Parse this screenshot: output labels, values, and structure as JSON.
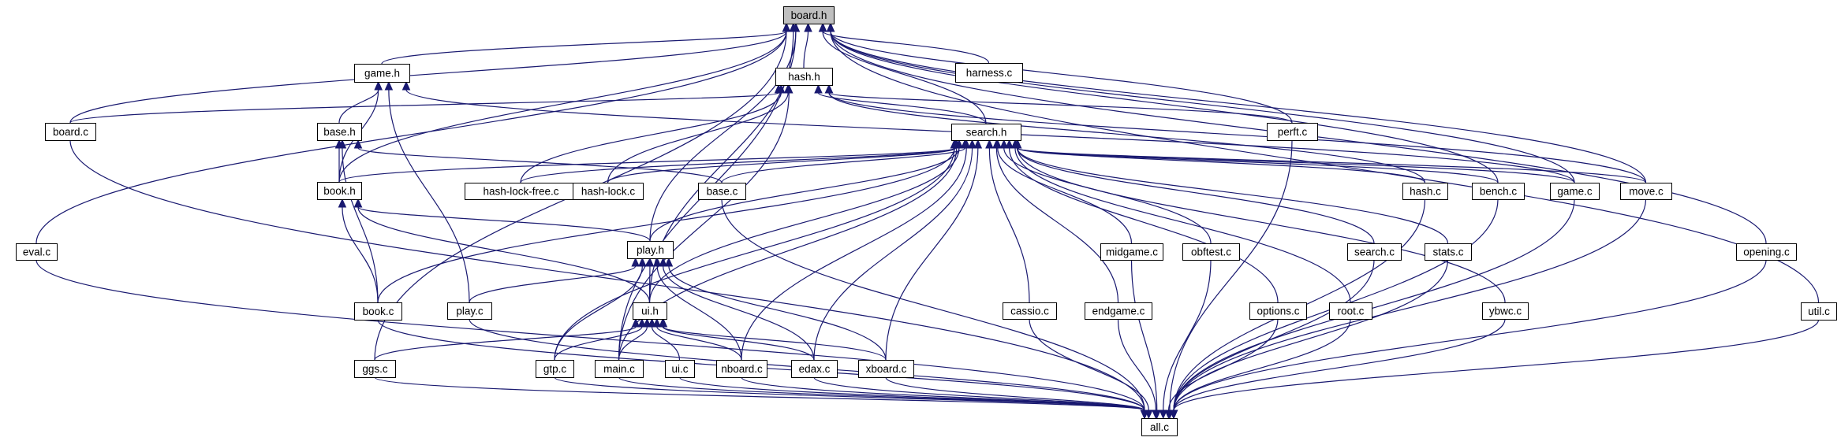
{
  "colors": {
    "edge": "#191970",
    "node_border": "#000000",
    "highlight_fill": "#bfbfbf",
    "background": "#ffffff"
  },
  "nodes": [
    {
      "id": "board_h",
      "label": "board.h",
      "highlight": true
    },
    {
      "id": "hash_h",
      "label": "hash.h"
    },
    {
      "id": "harness_c",
      "label": "harness.c"
    },
    {
      "id": "game_h",
      "label": "game.h"
    },
    {
      "id": "board_c",
      "label": "board.c"
    },
    {
      "id": "base_h",
      "label": "base.h"
    },
    {
      "id": "search_h",
      "label": "search.h"
    },
    {
      "id": "perft_c",
      "label": "perft.c"
    },
    {
      "id": "book_h",
      "label": "book.h"
    },
    {
      "id": "hlf_c",
      "label": "hash-lock-free.c"
    },
    {
      "id": "hl_c",
      "label": "hash-lock.c"
    },
    {
      "id": "base_c",
      "label": "base.c"
    },
    {
      "id": "hash_c",
      "label": "hash.c"
    },
    {
      "id": "bench_c",
      "label": "bench.c"
    },
    {
      "id": "game_c",
      "label": "game.c"
    },
    {
      "id": "move_c",
      "label": "move.c"
    },
    {
      "id": "eval_c",
      "label": "eval.c"
    },
    {
      "id": "play_h",
      "label": "play.h"
    },
    {
      "id": "book_c",
      "label": "book.c"
    },
    {
      "id": "midgame_c",
      "label": "midgame.c"
    },
    {
      "id": "obftest_c",
      "label": "obftest.c"
    },
    {
      "id": "search_c",
      "label": "search.c"
    },
    {
      "id": "stats_c",
      "label": "stats.c"
    },
    {
      "id": "opening_c",
      "label": "opening.c"
    },
    {
      "id": "play_c",
      "label": "play.c"
    },
    {
      "id": "ui_h",
      "label": "ui.h"
    },
    {
      "id": "cassio_c",
      "label": "cassio.c"
    },
    {
      "id": "endgame_c",
      "label": "endgame.c"
    },
    {
      "id": "options_c",
      "label": "options.c"
    },
    {
      "id": "root_c",
      "label": "root.c"
    },
    {
      "id": "ybwc_c",
      "label": "ybwc.c"
    },
    {
      "id": "util_c",
      "label": "util.c"
    },
    {
      "id": "ggs_c",
      "label": "ggs.c"
    },
    {
      "id": "gtp_c",
      "label": "gtp.c"
    },
    {
      "id": "main_c",
      "label": "main.c"
    },
    {
      "id": "ui_c",
      "label": "ui.c"
    },
    {
      "id": "nboard_c",
      "label": "nboard.c"
    },
    {
      "id": "edax_c",
      "label": "edax.c"
    },
    {
      "id": "xboard_c",
      "label": "xboard.c"
    },
    {
      "id": "all_c",
      "label": "all.c"
    }
  ],
  "edges": [
    [
      "hash_h",
      "board_h"
    ],
    [
      "harness_c",
      "board_h"
    ],
    [
      "game_h",
      "board_h"
    ],
    [
      "board_c",
      "board_h"
    ],
    [
      "search_h",
      "board_h"
    ],
    [
      "perft_c",
      "board_h"
    ],
    [
      "book_h",
      "board_h"
    ],
    [
      "move_c",
      "board_h"
    ],
    [
      "game_c",
      "board_h"
    ],
    [
      "bench_c",
      "board_h"
    ],
    [
      "eval_c",
      "board_h"
    ],
    [
      "play_h",
      "board_h"
    ],
    [
      "ui_h",
      "board_h"
    ],
    [
      "main_c",
      "board_h"
    ],
    [
      "ggs_c",
      "board_h"
    ],
    [
      "opening_c",
      "board_h"
    ],
    [
      "util_c",
      "board_h"
    ],
    [
      "board_c",
      "hash_h"
    ],
    [
      "search_h",
      "hash_h"
    ],
    [
      "perft_c",
      "hash_h"
    ],
    [
      "hlf_c",
      "hash_h"
    ],
    [
      "hl_c",
      "hash_h"
    ],
    [
      "hash_c",
      "hash_h"
    ],
    [
      "move_c",
      "hash_h"
    ],
    [
      "main_c",
      "hash_h"
    ],
    [
      "base_h",
      "game_h"
    ],
    [
      "book_h",
      "game_h"
    ],
    [
      "play_c",
      "game_h"
    ],
    [
      "game_c",
      "game_h"
    ],
    [
      "book_h",
      "base_h"
    ],
    [
      "base_c",
      "base_h"
    ],
    [
      "book_c",
      "base_h"
    ],
    [
      "book_h",
      "search_h"
    ],
    [
      "hlf_c",
      "search_h"
    ],
    [
      "hl_c",
      "search_h"
    ],
    [
      "base_c",
      "search_h"
    ],
    [
      "book_c",
      "search_h"
    ],
    [
      "hash_c",
      "search_h"
    ],
    [
      "bench_c",
      "search_h"
    ],
    [
      "game_c",
      "search_h"
    ],
    [
      "move_c",
      "search_h"
    ],
    [
      "play_h",
      "search_h"
    ],
    [
      "midgame_c",
      "search_h"
    ],
    [
      "obftest_c",
      "search_h"
    ],
    [
      "search_c",
      "search_h"
    ],
    [
      "stats_c",
      "search_h"
    ],
    [
      "ui_h",
      "search_h"
    ],
    [
      "cassio_c",
      "search_h"
    ],
    [
      "endgame_c",
      "search_h"
    ],
    [
      "options_c",
      "search_h"
    ],
    [
      "root_c",
      "search_h"
    ],
    [
      "ybwc_c",
      "search_h"
    ],
    [
      "gtp_c",
      "search_h"
    ],
    [
      "main_c",
      "search_h"
    ],
    [
      "nboard_c",
      "search_h"
    ],
    [
      "edax_c",
      "search_h"
    ],
    [
      "xboard_c",
      "search_h"
    ],
    [
      "book_c",
      "book_h"
    ],
    [
      "play_h",
      "book_h"
    ],
    [
      "ui_h",
      "book_h"
    ],
    [
      "play_c",
      "play_h"
    ],
    [
      "ui_h",
      "play_h"
    ],
    [
      "gtp_c",
      "play_h"
    ],
    [
      "nboard_c",
      "play_h"
    ],
    [
      "edax_c",
      "play_h"
    ],
    [
      "xboard_c",
      "play_h"
    ],
    [
      "ggs_c",
      "ui_h"
    ],
    [
      "gtp_c",
      "ui_h"
    ],
    [
      "main_c",
      "ui_h"
    ],
    [
      "ui_c",
      "ui_h"
    ],
    [
      "nboard_c",
      "ui_h"
    ],
    [
      "edax_c",
      "ui_h"
    ],
    [
      "xboard_c",
      "ui_h"
    ],
    [
      "eval_c",
      "all_c"
    ],
    [
      "board_c",
      "all_c"
    ],
    [
      "ggs_c",
      "all_c"
    ],
    [
      "book_c",
      "all_c"
    ],
    [
      "play_c",
      "all_c"
    ],
    [
      "gtp_c",
      "all_c"
    ],
    [
      "main_c",
      "all_c"
    ],
    [
      "ui_c",
      "all_c"
    ],
    [
      "nboard_c",
      "all_c"
    ],
    [
      "edax_c",
      "all_c"
    ],
    [
      "xboard_c",
      "all_c"
    ],
    [
      "base_c",
      "all_c"
    ],
    [
      "cassio_c",
      "all_c"
    ],
    [
      "endgame_c",
      "all_c"
    ],
    [
      "midgame_c",
      "all_c"
    ],
    [
      "obftest_c",
      "all_c"
    ],
    [
      "options_c",
      "all_c"
    ],
    [
      "root_c",
      "all_c"
    ],
    [
      "search_c",
      "all_c"
    ],
    [
      "stats_c",
      "all_c"
    ],
    [
      "ybwc_c",
      "all_c"
    ],
    [
      "hash_c",
      "all_c"
    ],
    [
      "bench_c",
      "all_c"
    ],
    [
      "game_c",
      "all_c"
    ],
    [
      "move_c",
      "all_c"
    ],
    [
      "perft_c",
      "all_c"
    ],
    [
      "opening_c",
      "all_c"
    ],
    [
      "util_c",
      "all_c"
    ]
  ]
}
